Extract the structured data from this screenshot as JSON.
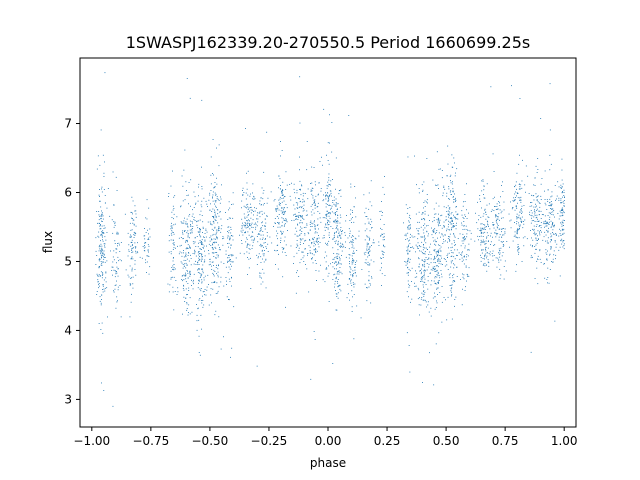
{
  "chart_data": {
    "type": "scatter",
    "title": "1SWASPJ162339.20-270550.5 Period 1660699.25s",
    "xlabel": "phase",
    "ylabel": "flux",
    "xlim": [
      -1.05,
      1.05
    ],
    "ylim": [
      2.6,
      7.95
    ],
    "xticks": [
      -1.0,
      -0.75,
      -0.5,
      -0.25,
      0.0,
      0.25,
      0.5,
      0.75,
      1.0
    ],
    "xtick_labels": [
      "−1.00",
      "−0.75",
      "−0.50",
      "−0.25",
      "0.00",
      "0.25",
      "0.50",
      "0.75",
      "1.00"
    ],
    "yticks": [
      3,
      4,
      5,
      6,
      7
    ],
    "ytick_labels": [
      "3",
      "4",
      "5",
      "6",
      "7"
    ],
    "grid": false,
    "marker_color": "#1f77b4",
    "series": [
      {
        "x_range": [
          -1.0,
          1.0
        ],
        "clusters": [
          {
            "x": -0.96,
            "y": 5.2,
            "spread": 0.45,
            "n": 180,
            "width": 0.012
          },
          {
            "x": -0.9,
            "y": 5.1,
            "spread": 0.35,
            "n": 70,
            "width": 0.01
          },
          {
            "x": -0.83,
            "y": 5.2,
            "spread": 0.35,
            "n": 90,
            "width": 0.01
          },
          {
            "x": -0.77,
            "y": 5.3,
            "spread": 0.25,
            "n": 40,
            "width": 0.008
          },
          {
            "x": -0.66,
            "y": 5.2,
            "spread": 0.4,
            "n": 70,
            "width": 0.008
          },
          {
            "x": -0.6,
            "y": 5.1,
            "spread": 0.45,
            "n": 180,
            "width": 0.015
          },
          {
            "x": -0.54,
            "y": 5.1,
            "spread": 0.45,
            "n": 180,
            "width": 0.015
          },
          {
            "x": -0.48,
            "y": 5.4,
            "spread": 0.5,
            "n": 190,
            "width": 0.015
          },
          {
            "x": -0.42,
            "y": 5.2,
            "spread": 0.35,
            "n": 80,
            "width": 0.01
          },
          {
            "x": -0.34,
            "y": 5.5,
            "spread": 0.3,
            "n": 130,
            "width": 0.015
          },
          {
            "x": -0.28,
            "y": 5.4,
            "spread": 0.3,
            "n": 110,
            "width": 0.015
          },
          {
            "x": -0.2,
            "y": 5.7,
            "spread": 0.35,
            "n": 130,
            "width": 0.015
          },
          {
            "x": -0.12,
            "y": 5.6,
            "spread": 0.35,
            "n": 130,
            "width": 0.015
          },
          {
            "x": -0.06,
            "y": 5.5,
            "spread": 0.35,
            "n": 140,
            "width": 0.015
          },
          {
            "x": 0.0,
            "y": 5.7,
            "spread": 0.4,
            "n": 120,
            "width": 0.012
          },
          {
            "x": 0.04,
            "y": 5.2,
            "spread": 0.45,
            "n": 160,
            "width": 0.012
          },
          {
            "x": 0.1,
            "y": 5.1,
            "spread": 0.4,
            "n": 110,
            "width": 0.012
          },
          {
            "x": 0.17,
            "y": 5.2,
            "spread": 0.35,
            "n": 80,
            "width": 0.01
          },
          {
            "x": 0.23,
            "y": 5.3,
            "spread": 0.25,
            "n": 40,
            "width": 0.008
          },
          {
            "x": 0.34,
            "y": 5.2,
            "spread": 0.4,
            "n": 80,
            "width": 0.008
          },
          {
            "x": 0.4,
            "y": 5.1,
            "spread": 0.45,
            "n": 180,
            "width": 0.015
          },
          {
            "x": 0.46,
            "y": 5.1,
            "spread": 0.45,
            "n": 180,
            "width": 0.015
          },
          {
            "x": 0.52,
            "y": 5.4,
            "spread": 0.5,
            "n": 190,
            "width": 0.015
          },
          {
            "x": 0.58,
            "y": 5.2,
            "spread": 0.35,
            "n": 80,
            "width": 0.01
          },
          {
            "x": 0.66,
            "y": 5.5,
            "spread": 0.3,
            "n": 130,
            "width": 0.015
          },
          {
            "x": 0.72,
            "y": 5.4,
            "spread": 0.3,
            "n": 110,
            "width": 0.015
          },
          {
            "x": 0.8,
            "y": 5.7,
            "spread": 0.35,
            "n": 130,
            "width": 0.015
          },
          {
            "x": 0.88,
            "y": 5.6,
            "spread": 0.35,
            "n": 130,
            "width": 0.015
          },
          {
            "x": 0.94,
            "y": 5.5,
            "spread": 0.35,
            "n": 140,
            "width": 0.015
          },
          {
            "x": 0.99,
            "y": 5.7,
            "spread": 0.3,
            "n": 100,
            "width": 0.008
          }
        ]
      }
    ]
  }
}
